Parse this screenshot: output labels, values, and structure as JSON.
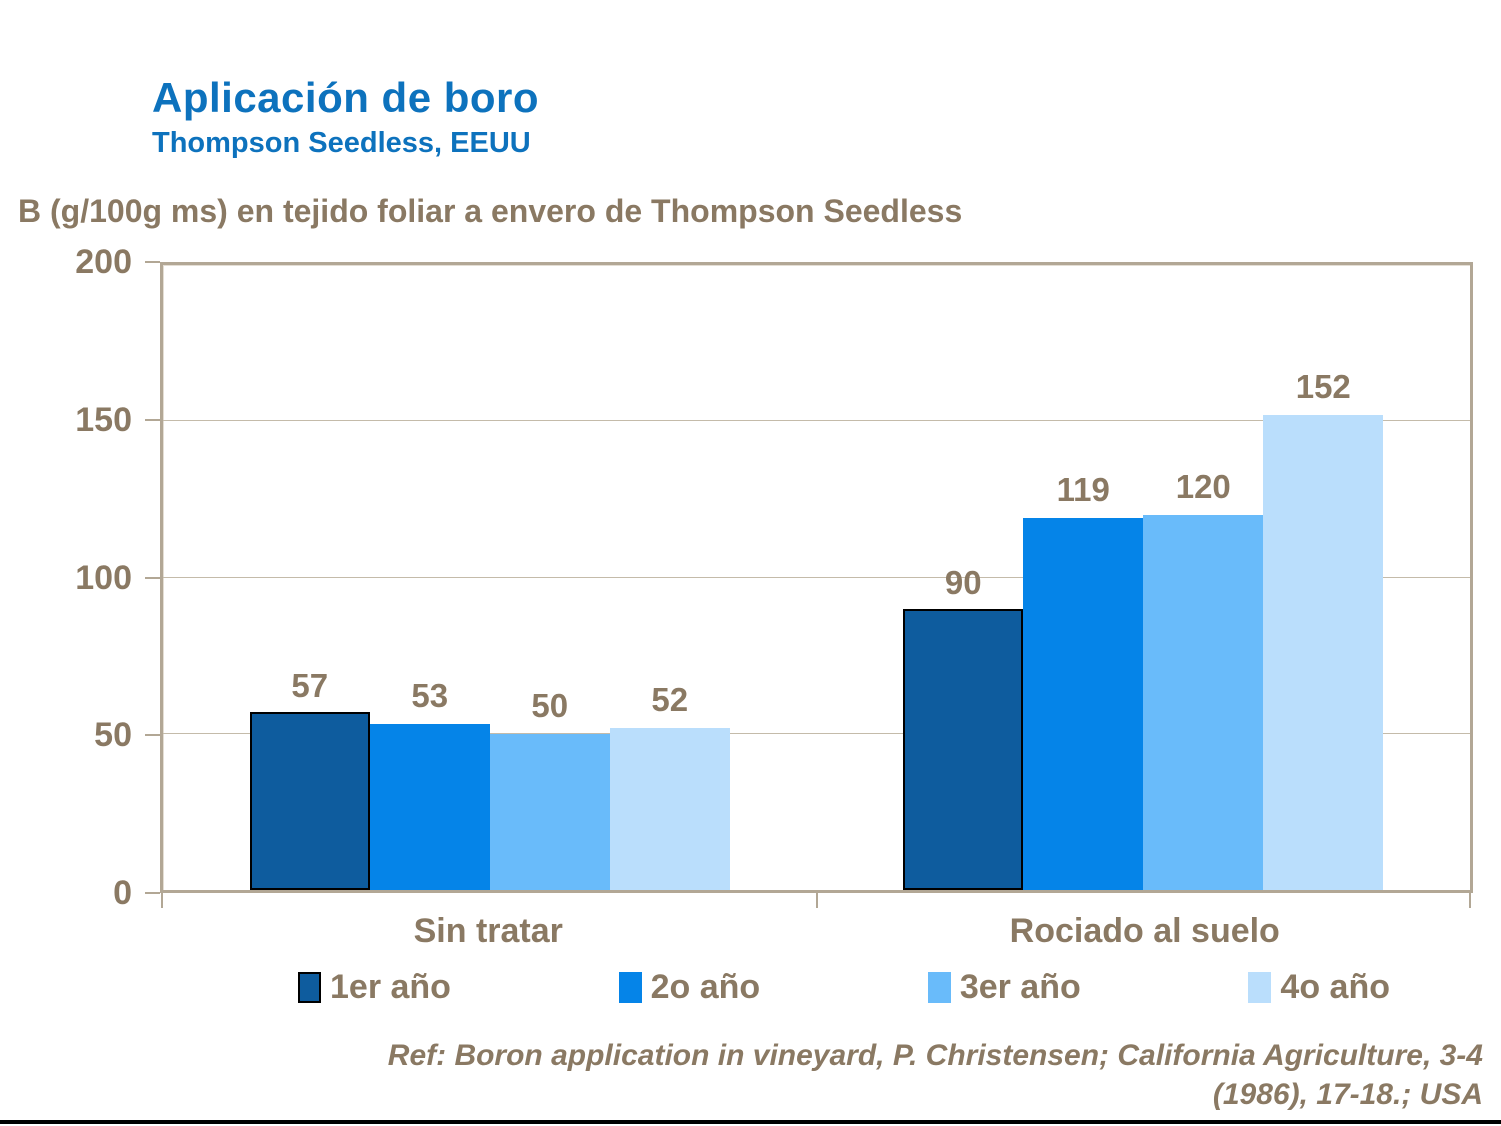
{
  "slide": {
    "title": "Aplicación de boro",
    "subtitle": "Thompson Seedless, EEUU",
    "footer_ref_line1": "Ref: Boron application in vineyard, P. Christensen; California Agriculture, 3-4",
    "footer_ref_line2": "(1986), 17-18.; USA"
  },
  "colors": {
    "title_blue": "#0d72bd",
    "text_brown": "#8a7963",
    "plot_border": "#b2a795",
    "gridline": "#c4bbaa",
    "bottom_rule": "#000000"
  },
  "chart_data": {
    "type": "bar",
    "title": "B (g/100g ms) en tejido foliar a envero de Thompson Seedless",
    "categories": [
      "Sin tratar",
      "Rociado al suelo"
    ],
    "series": [
      {
        "name": "1er año",
        "values": [
          57,
          90
        ],
        "color": "#0e5c9e",
        "border": "#000000"
      },
      {
        "name": "2o año",
        "values": [
          53,
          119
        ],
        "color": "#0584e8"
      },
      {
        "name": "3er año",
        "values": [
          50,
          120
        ],
        "color": "#69bbfa"
      },
      {
        "name": "4o año",
        "values": [
          52,
          152
        ],
        "color": "#badefc"
      }
    ],
    "xlabel": "",
    "ylabel": "",
    "ylim": [
      0,
      200
    ],
    "yticks": [
      0,
      50,
      100,
      150,
      200
    ],
    "grid": true,
    "legend_position": "bottom"
  }
}
